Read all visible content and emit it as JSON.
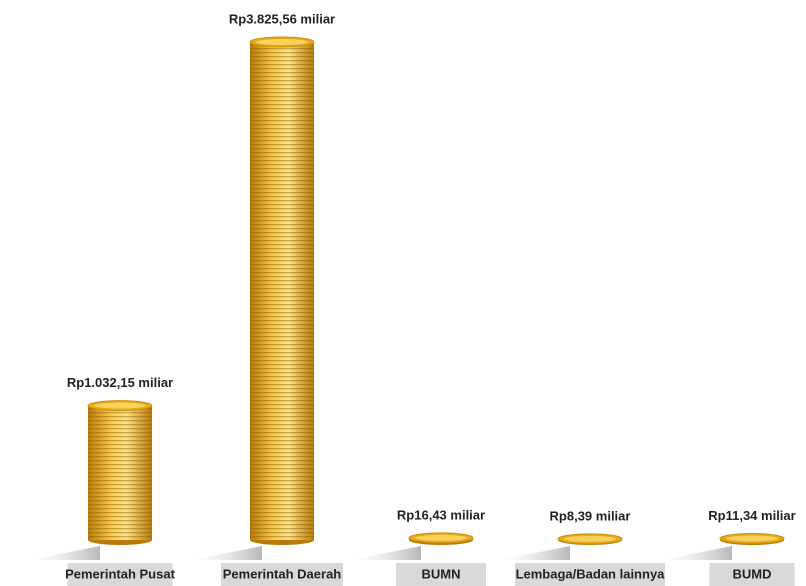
{
  "chart_data": {
    "type": "coin-stack",
    "categories": [
      "Pemerintah Pusat",
      "Pemerintah Daerah",
      "BUMN",
      "Lembaga/Badan lainnya",
      "BUMD"
    ],
    "values": [
      1032.15,
      3825.56,
      16.43,
      8.39,
      11.34
    ],
    "value_labels": [
      "Rp1.032,15 miliar",
      "Rp3.825,56 miliar",
      "Rp16,43 miliar",
      "Rp8,39 miliar",
      "Rp11,34 miliar"
    ],
    "color": "#e8a817"
  }
}
